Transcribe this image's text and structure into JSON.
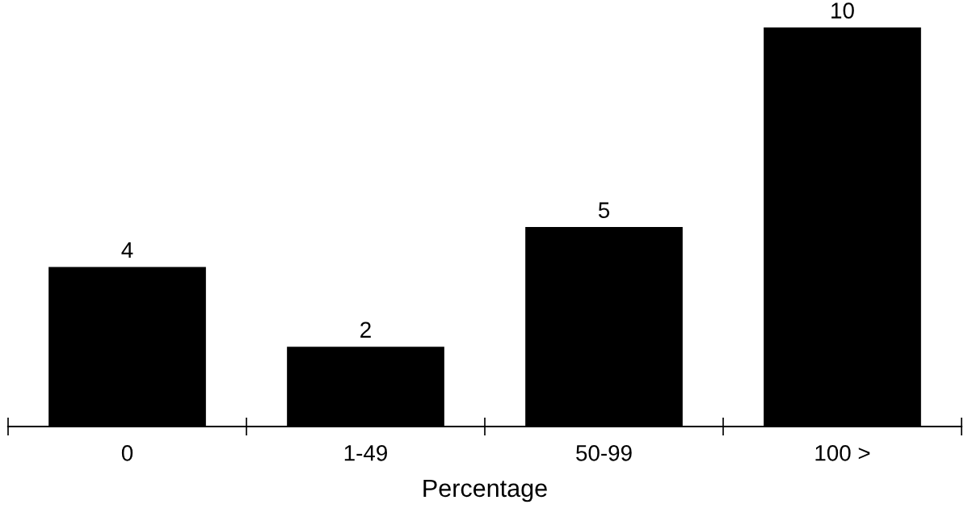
{
  "chart_data": {
    "type": "bar",
    "xlabel": "Percentage",
    "categories": [
      "0",
      "1-49",
      "50-99",
      "100 >"
    ],
    "values": [
      4,
      2,
      5,
      10
    ],
    "color": "#000000",
    "data_labels": true,
    "grid": false,
    "legend": false
  }
}
